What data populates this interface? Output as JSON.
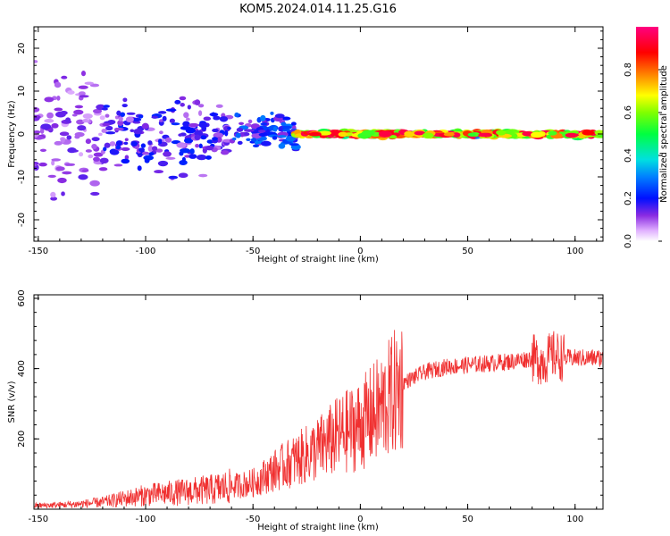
{
  "title": "KOM5.2024.014.11.25.G16",
  "colors": {
    "snr_line": "#f03030",
    "axis": "#000000"
  },
  "chart_data": [
    {
      "type": "heatmap",
      "xlabel": "Height of straight line (km)",
      "ylabel": "Frequency (Hz)",
      "xlim": [
        -152,
        113
      ],
      "ylim": [
        -25,
        25
      ],
      "xticks": [
        -150,
        -100,
        -50,
        0,
        50,
        100
      ],
      "xtick_labels": [
        "-150",
        "-100",
        "-50",
        "0",
        "50",
        "100"
      ],
      "yticks": [
        -20,
        -10,
        0,
        10,
        20
      ],
      "ytick_labels": [
        "-20",
        "-10",
        "0",
        "10",
        "20"
      ],
      "colorbar": {
        "label": "Normalized spectral amplitude",
        "range": [
          0,
          1
        ],
        "ticks": [
          0.0,
          0.2,
          0.4,
          0.6,
          0.8
        ],
        "tick_labels": [
          "0.0",
          "0.2",
          "0.4",
          "0.6",
          "0.8"
        ],
        "colormap": "gist_ncar_like (white-violet-blue-cyan-green-yellow-red-magenta)"
      },
      "description_of_data": "Scattered low-amplitude spectral blobs spread across ±25 Hz for heights -150 to -30 km, converging to a narrow high-amplitude band near 0 Hz from about -30 km to 113 km.",
      "segments": [
        {
          "x_range": [
            -152,
            -120
          ],
          "freq_spread_hz": 22,
          "amplitude": 0.1
        },
        {
          "x_range": [
            -120,
            -60
          ],
          "freq_spread_hz": 12,
          "amplitude": 0.15
        },
        {
          "x_range": [
            -60,
            -30
          ],
          "freq_spread_hz": 6,
          "amplitude": 0.2
        },
        {
          "x_range": [
            -30,
            113
          ],
          "freq_spread_hz": 1.5,
          "amplitude": 0.5
        }
      ]
    },
    {
      "type": "line",
      "xlabel": "Height of straight line (km)",
      "ylabel": "SNR (v/v)",
      "xlim": [
        -152,
        113
      ],
      "ylim": [
        0,
        610
      ],
      "xticks": [
        -150,
        -100,
        -50,
        0,
        50,
        100
      ],
      "xtick_labels": [
        "-150",
        "-100",
        "-50",
        "0",
        "50",
        "100"
      ],
      "yticks": [
        200,
        400,
        600
      ],
      "ytick_labels": [
        "200",
        "400",
        "600"
      ],
      "grid": false,
      "series": [
        {
          "x": [
            -152,
            -140,
            -130,
            -120,
            -110,
            -100,
            -90,
            -80,
            -70,
            -60,
            -50,
            -40,
            -30,
            -20,
            -10,
            0,
            10,
            20,
            30,
            40,
            50,
            60,
            70,
            80,
            85,
            90,
            95,
            100,
            113
          ],
          "values": [
            10,
            12,
            15,
            20,
            30,
            40,
            45,
            50,
            55,
            65,
            75,
            110,
            140,
            170,
            210,
            240,
            290,
            360,
            390,
            405,
            410,
            415,
            420,
            430,
            420,
            440,
            430,
            430,
            430
          ]
        }
      ],
      "annotations": [
        {
          "text": "",
          "x": 91,
          "y": 600
        }
      ]
    }
  ]
}
